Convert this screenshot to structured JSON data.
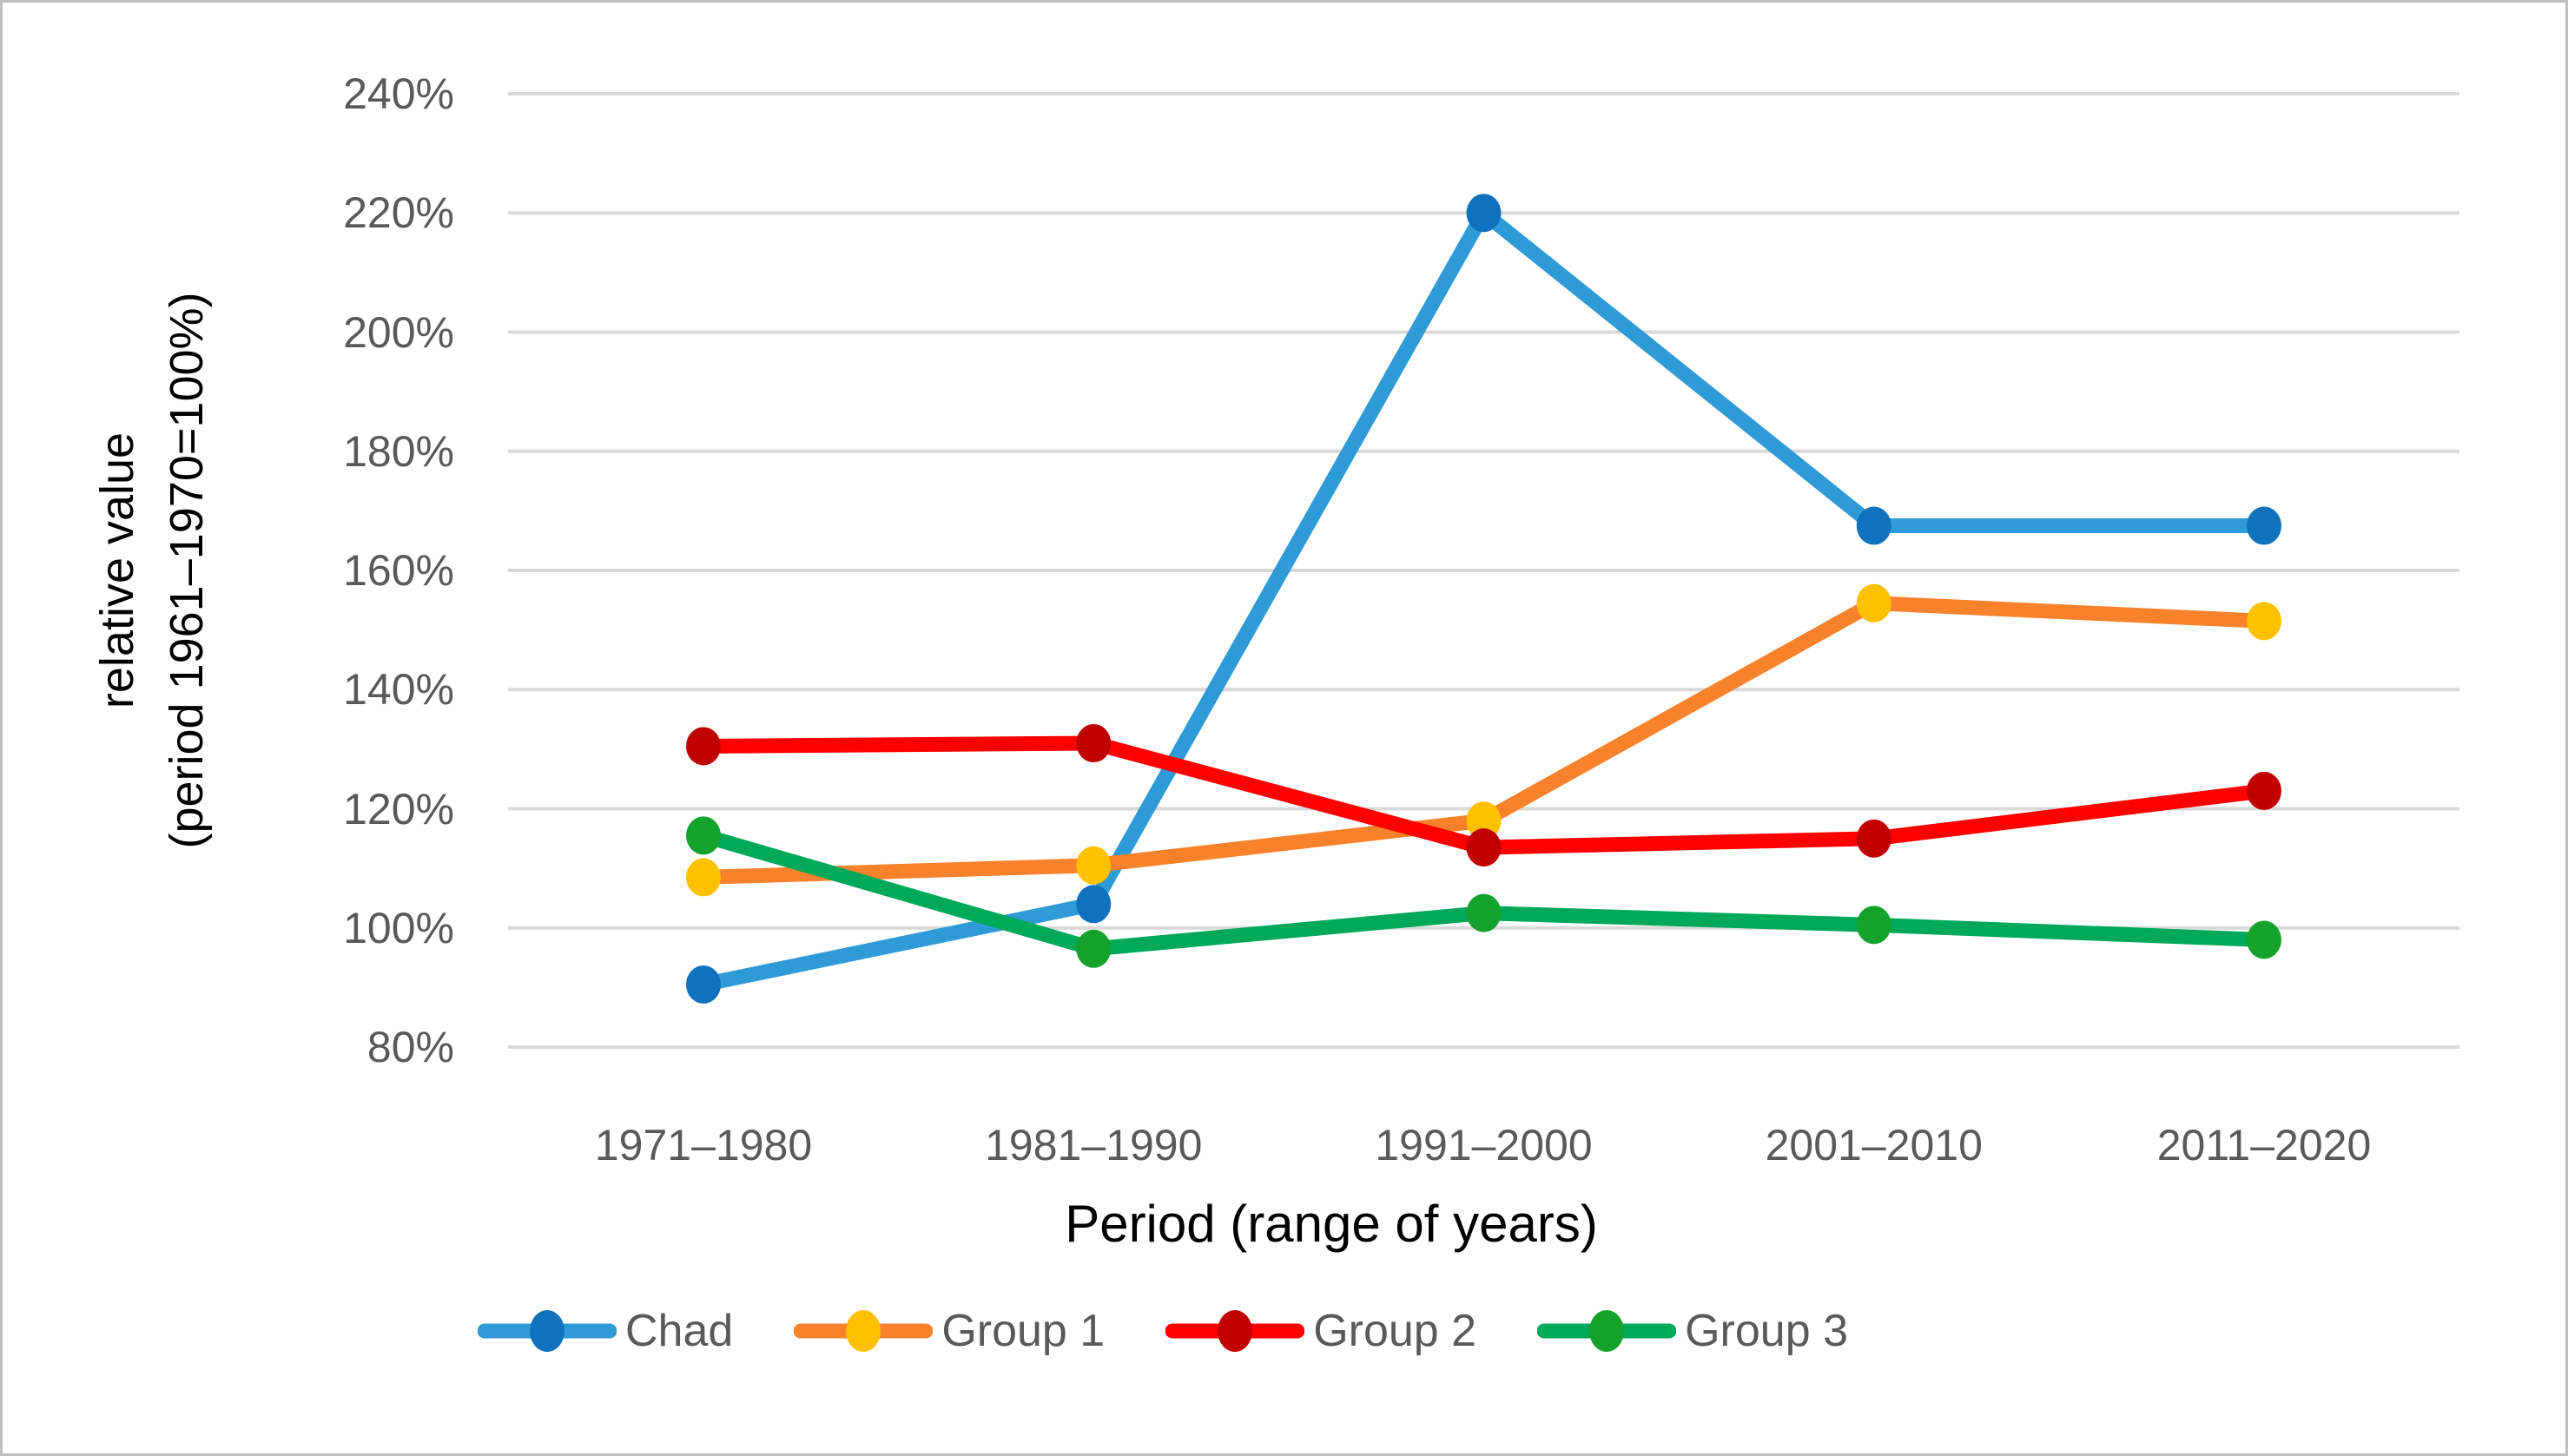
{
  "chart_data": {
    "type": "line",
    "title": "",
    "xlabel": "Period (range of years)",
    "ylabel_line1": "relative value",
    "ylabel_line2": "(period 1961–1970=100%)",
    "categories": [
      "1971–1980",
      "1981–1990",
      "1991–2000",
      "2001–2010",
      "2011–2020"
    ],
    "y_ticks": [
      {
        "value": 240,
        "label": "240%"
      },
      {
        "value": 220,
        "label": "220%"
      },
      {
        "value": 200,
        "label": "200%"
      },
      {
        "value": 180,
        "label": "180%"
      },
      {
        "value": 160,
        "label": "160%"
      },
      {
        "value": 140,
        "label": "140%"
      },
      {
        "value": 120,
        "label": "120%"
      },
      {
        "value": 100,
        "label": "100%"
      },
      {
        "value": 80,
        "label": "80%"
      }
    ],
    "ylim": [
      80,
      240
    ],
    "grid": true,
    "legend_position": "bottom",
    "series": [
      {
        "name": "Chad",
        "values": [
          90.5,
          104,
          220,
          167.5,
          167.5
        ],
        "line_color": "#2E9BD6",
        "marker_color": "#1071BC"
      },
      {
        "name": "Group 1",
        "values": [
          108.5,
          110.5,
          118,
          154.5,
          151.5
        ],
        "line_color": "#F8812C",
        "marker_color": "#FFC000"
      },
      {
        "name": "Group 2",
        "values": [
          130.5,
          131,
          113.5,
          115,
          123
        ],
        "line_color": "#FF0000",
        "marker_color": "#C00000"
      },
      {
        "name": "Group 3",
        "values": [
          115.5,
          96.5,
          102.5,
          100.5,
          98
        ],
        "line_color": "#00A859",
        "marker_color": "#14A22D"
      }
    ],
    "colors": {
      "gridline": "#D9D9D9",
      "tick_text": "#595959",
      "axis_title_text": "#000000",
      "border": "#BFBFBF",
      "background": "#FFFFFF"
    }
  }
}
